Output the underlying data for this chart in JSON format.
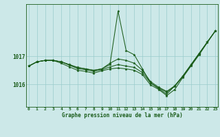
{
  "title": "Graphe pression niveau de la mer (hPa)",
  "background_color": "#cce8e8",
  "line_color": "#1a5c1a",
  "grid_color": "#99cccc",
  "hours": [
    0,
    1,
    2,
    3,
    4,
    5,
    6,
    7,
    8,
    9,
    10,
    11,
    12,
    13,
    14,
    15,
    16,
    17,
    18,
    19,
    20,
    21,
    22,
    23
  ],
  "s1": [
    1016.65,
    1016.8,
    1016.85,
    1016.85,
    1016.8,
    1016.7,
    1016.6,
    1016.55,
    1016.5,
    1016.55,
    1016.7,
    1018.6,
    1017.2,
    1017.05,
    1016.55,
    1016.05,
    1015.85,
    1015.65,
    1015.95,
    1016.3,
    1016.7,
    1017.1,
    1017.5,
    1017.9
  ],
  "s2": [
    1016.65,
    1016.8,
    1016.85,
    1016.85,
    1016.8,
    1016.7,
    1016.6,
    1016.55,
    1016.5,
    1016.55,
    1016.75,
    1016.9,
    1016.85,
    1016.75,
    1016.5,
    1016.1,
    1015.9,
    1015.75,
    1015.95,
    1016.3,
    1016.7,
    1017.1,
    1017.5,
    1017.9
  ],
  "s3": [
    1016.65,
    1016.8,
    1016.85,
    1016.85,
    1016.8,
    1016.68,
    1016.56,
    1016.52,
    1016.46,
    1016.52,
    1016.62,
    1016.7,
    1016.65,
    1016.6,
    1016.42,
    1016.05,
    1015.87,
    1015.72,
    1015.93,
    1016.28,
    1016.68,
    1017.08,
    1017.5,
    1017.9
  ],
  "s4": [
    1016.65,
    1016.8,
    1016.85,
    1016.85,
    1016.75,
    1016.62,
    1016.5,
    1016.46,
    1016.4,
    1016.48,
    1016.55,
    1016.58,
    1016.55,
    1016.5,
    1016.35,
    1015.98,
    1015.82,
    1015.6,
    1015.82,
    1016.25,
    1016.65,
    1017.05,
    1017.48,
    1017.9
  ],
  "yticks": [
    1016,
    1017
  ],
  "ylim": [
    1015.2,
    1018.85
  ],
  "xlim": [
    -0.3,
    23.3
  ]
}
